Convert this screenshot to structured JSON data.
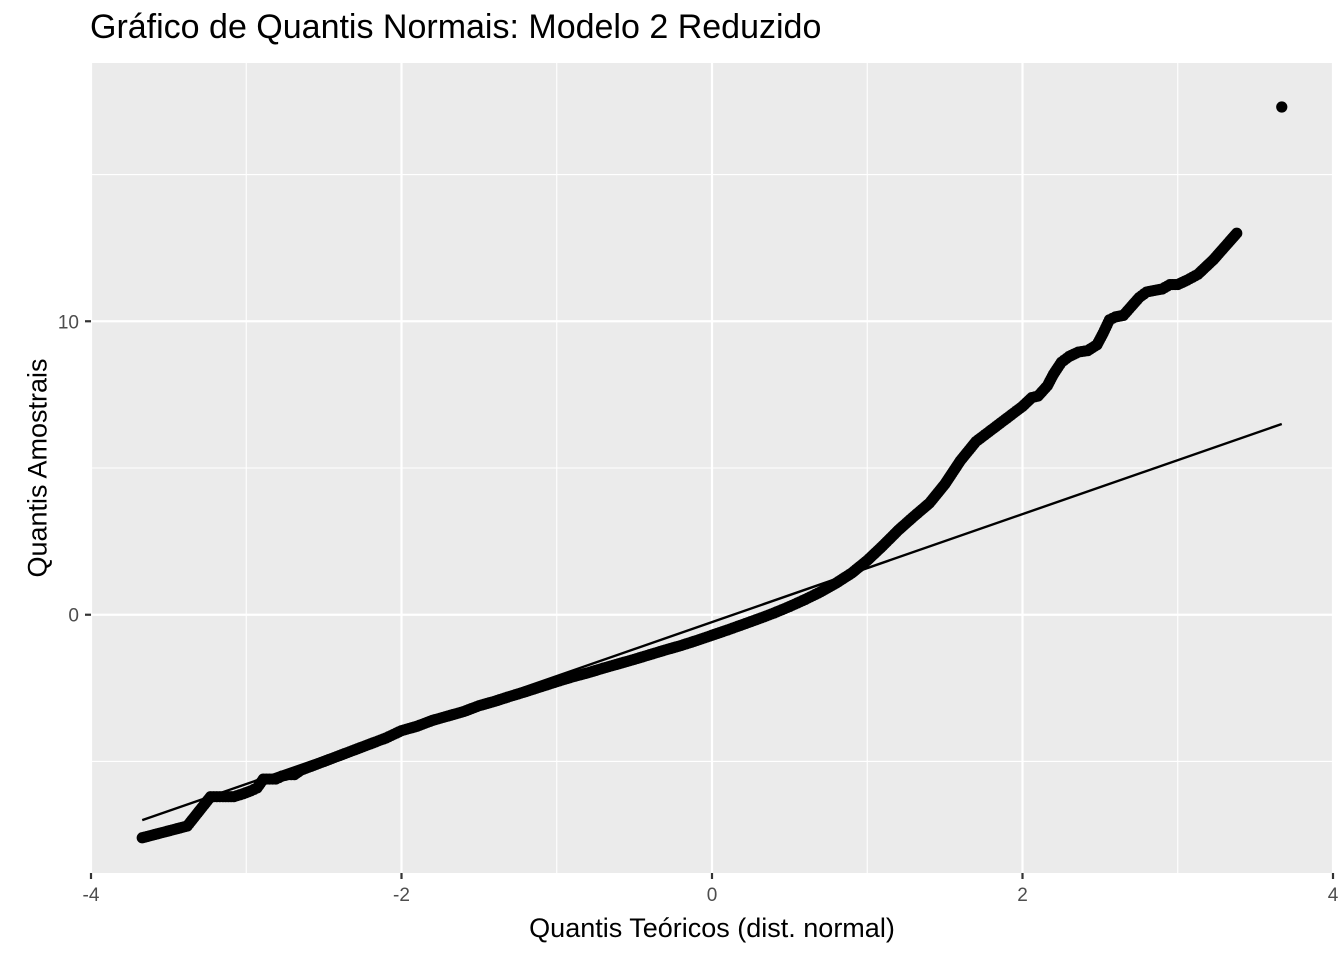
{
  "chart_data": {
    "type": "scatter",
    "title": "Gráfico de Quantis Normais: Modelo 2 Reduzido",
    "xlabel": "Quantis Teóricos (dist. normal)",
    "ylabel": "Quantis Amostrais",
    "xlim": [
      -4.0,
      4.0
    ],
    "ylim": [
      -8.8,
      18.8
    ],
    "x_ticks": [
      -4,
      -2,
      0,
      2,
      4
    ],
    "x_tick_labels": [
      "-4",
      "-2",
      "0",
      "2",
      "4"
    ],
    "y_ticks": [
      0,
      10
    ],
    "y_tick_labels": [
      "0",
      "10"
    ],
    "grid": true,
    "background": "#ebebeb",
    "gridline_color": "#ffffff",
    "point_color": "#000000",
    "reference_line": {
      "x": [
        -3.67,
        3.67
      ],
      "y": [
        -7.0,
        6.5
      ],
      "color": "#000000"
    },
    "series": [
      {
        "points": [
          [
            -3.67,
            -7.6
          ],
          [
            -3.38,
            -7.2
          ],
          [
            -3.23,
            -6.2
          ],
          [
            -3.15,
            -6.2
          ],
          [
            -3.08,
            -6.2
          ],
          [
            -3.02,
            -6.1
          ],
          [
            -2.97,
            -6.0
          ],
          [
            -2.93,
            -5.9
          ],
          [
            -2.89,
            -5.6
          ],
          [
            -2.85,
            -5.6
          ],
          [
            -2.81,
            -5.6
          ],
          [
            -2.77,
            -5.5
          ],
          [
            -2.73,
            -5.45
          ],
          [
            -2.69,
            -5.45
          ],
          [
            -2.65,
            -5.3
          ],
          [
            -2.6,
            -5.2
          ],
          [
            -2.55,
            -5.1
          ],
          [
            -2.5,
            -5.0
          ],
          [
            -2.45,
            -4.9
          ],
          [
            -2.4,
            -4.8
          ],
          [
            -2.35,
            -4.7
          ],
          [
            -2.3,
            -4.6
          ],
          [
            -2.25,
            -4.5
          ],
          [
            -2.2,
            -4.4
          ],
          [
            -2.1,
            -4.2
          ],
          [
            -2.0,
            -3.95
          ],
          [
            -1.9,
            -3.8
          ],
          [
            -1.8,
            -3.6
          ],
          [
            -1.7,
            -3.45
          ],
          [
            -1.6,
            -3.3
          ],
          [
            -1.5,
            -3.1
          ],
          [
            -1.4,
            -2.95
          ],
          [
            -1.3,
            -2.78
          ],
          [
            -1.2,
            -2.62
          ],
          [
            -1.1,
            -2.45
          ],
          [
            -1.0,
            -2.28
          ],
          [
            -0.9,
            -2.12
          ],
          [
            -0.8,
            -1.98
          ],
          [
            -0.7,
            -1.82
          ],
          [
            -0.6,
            -1.67
          ],
          [
            -0.5,
            -1.52
          ],
          [
            -0.4,
            -1.36
          ],
          [
            -0.3,
            -1.2
          ],
          [
            -0.2,
            -1.05
          ],
          [
            -0.1,
            -0.88
          ],
          [
            0.0,
            -0.7
          ],
          [
            0.1,
            -0.52
          ],
          [
            0.2,
            -0.33
          ],
          [
            0.3,
            -0.14
          ],
          [
            0.4,
            0.06
          ],
          [
            0.5,
            0.28
          ],
          [
            0.6,
            0.52
          ],
          [
            0.7,
            0.78
          ],
          [
            0.8,
            1.08
          ],
          [
            0.9,
            1.42
          ],
          [
            1.0,
            1.85
          ],
          [
            1.1,
            2.35
          ],
          [
            1.2,
            2.88
          ],
          [
            1.3,
            3.35
          ],
          [
            1.4,
            3.8
          ],
          [
            1.5,
            4.45
          ],
          [
            1.6,
            5.25
          ],
          [
            1.7,
            5.9
          ],
          [
            1.8,
            6.3
          ],
          [
            1.9,
            6.7
          ],
          [
            2.0,
            7.1
          ],
          [
            2.06,
            7.4
          ],
          [
            2.1,
            7.45
          ],
          [
            2.16,
            7.8
          ],
          [
            2.2,
            8.2
          ],
          [
            2.25,
            8.6
          ],
          [
            2.3,
            8.8
          ],
          [
            2.36,
            8.95
          ],
          [
            2.42,
            9.0
          ],
          [
            2.48,
            9.2
          ],
          [
            2.52,
            9.6
          ],
          [
            2.56,
            10.05
          ],
          [
            2.6,
            10.15
          ],
          [
            2.65,
            10.2
          ],
          [
            2.7,
            10.5
          ],
          [
            2.75,
            10.8
          ],
          [
            2.8,
            11.0
          ],
          [
            2.85,
            11.05
          ],
          [
            2.9,
            11.1
          ],
          [
            2.95,
            11.25
          ],
          [
            3.0,
            11.25
          ],
          [
            3.06,
            11.4
          ],
          [
            3.13,
            11.6
          ],
          [
            3.23,
            12.1
          ],
          [
            3.38,
            13.0
          ],
          [
            3.67,
            17.3
          ]
        ]
      }
    ]
  }
}
